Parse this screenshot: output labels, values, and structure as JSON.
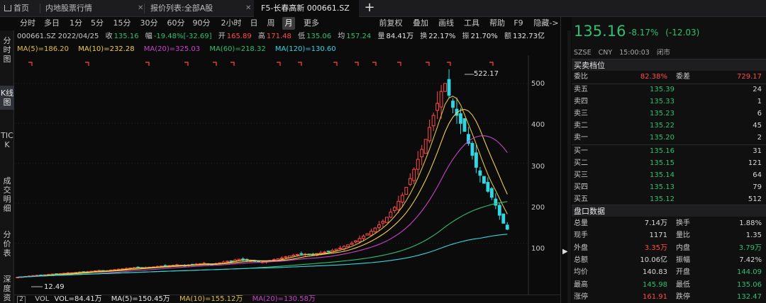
{
  "tabs": [
    {
      "label": "首页",
      "icon": "home-icon"
    },
    {
      "label": "内地股票行情"
    },
    {
      "label": "报价列表:全部A股"
    },
    {
      "label": "F5-长春高新 000661.SZ",
      "active": true
    }
  ],
  "tab_close": "✕",
  "add_tab": "+",
  "periods": [
    "分时",
    "多日",
    "1分",
    "5分",
    "15分",
    "30分",
    "60分",
    "90分",
    "2小时",
    "日",
    "周",
    "月",
    "更多"
  ],
  "active_period": "月",
  "toolbar_right": [
    "前复权",
    "叠加",
    "画线",
    "工具",
    "帮助",
    "F9",
    "隐藏->"
  ],
  "left_nav": [
    {
      "label": "分时图"
    },
    {
      "label": "K线图",
      "active": true
    },
    {
      "label": "TICK"
    },
    {
      "label": "成交明细"
    },
    {
      "label": "分价表"
    },
    {
      "label": "深度资"
    }
  ],
  "info": {
    "code_date": "000661.SZ 2022/04/25",
    "close_label": "收",
    "close": "135.16",
    "amp_label": "幅",
    "amp": "-19.48%[-32.69]",
    "open_label": "开",
    "open": "165.89",
    "high_label": "高",
    "high": "171.48",
    "low_label": "低",
    "low": "135.06",
    "avg_label": "均",
    "avg": "157.24",
    "vol_label": "量",
    "vol": "84.41万",
    "turn_label": "换",
    "turn": "22.17%",
    "swing_label": "振",
    "swing": "21.70%",
    "amt_label": "额",
    "amt": "132.73亿"
  },
  "ma": [
    {
      "label": "MA(5)=186.20",
      "color": "#e0c040"
    },
    {
      "label": "MA(10)=232.28",
      "color": "#f0d050"
    },
    {
      "label": "MA(20)=325.03",
      "color": "#c844c8"
    },
    {
      "label": "MA(60)=218.32",
      "color": "#2fbf71"
    },
    {
      "label": "MA(120)=130.60",
      "color": "#33d6e0"
    }
  ],
  "y_ticks": [
    "500",
    "400",
    "300",
    "200",
    "100"
  ],
  "peak_label": "522.17",
  "low_label": "12.49",
  "volume_bar": {
    "num": "2",
    "vol": "VOL",
    "vol_val": "VOL=84.41万",
    "ma5": "MA(5)=150.45万",
    "ma10": "MA(10)=155.12万",
    "ma20": "MA(20)=130.58万"
  },
  "quote": {
    "price": "135.16",
    "change_pct": "-8.17%",
    "change": "(-12.03)",
    "exchange": "SZSE",
    "currency": "CNY",
    "time": "15:00:03",
    "status": "闭市"
  },
  "orderbook": {
    "title": "买卖档位",
    "ratio_label": "委比",
    "ratio": "82.38%",
    "diff_label": "委差",
    "diff": "729.17",
    "asks": [
      {
        "label": "卖五",
        "price": "135.39",
        "vol": "24"
      },
      {
        "label": "卖四",
        "price": "135.33",
        "vol": "1"
      },
      {
        "label": "卖三",
        "price": "135.23",
        "vol": "6"
      },
      {
        "label": "卖二",
        "price": "135.22",
        "vol": "45"
      },
      {
        "label": "卖一",
        "price": "135.20",
        "vol": "2"
      }
    ],
    "bids": [
      {
        "label": "买一",
        "price": "135.16",
        "vol": "31"
      },
      {
        "label": "买二",
        "price": "135.15",
        "vol": "121"
      },
      {
        "label": "买三",
        "price": "135.14",
        "vol": "64"
      },
      {
        "label": "买四",
        "price": "135.13",
        "vol": "79"
      },
      {
        "label": "买五",
        "price": "135.12",
        "vol": "512"
      }
    ]
  },
  "market": {
    "title": "盘口数据",
    "rows": [
      {
        "l1": "总量",
        "v1": "7.14万",
        "c1": "#d8d8d8",
        "l2": "换手",
        "v2": "1.88%",
        "c2": "#d8d8d8"
      },
      {
        "l1": "现手",
        "v1": "1171",
        "c1": "#d8d8d8",
        "l2": "量比",
        "v2": "1.35",
        "c2": "#d8d8d8"
      },
      {
        "l1": "外盘",
        "v1": "3.35万",
        "c1": "#ff4a4a",
        "l2": "内盘",
        "v2": "3.79万",
        "c2": "#2fbf71"
      },
      {
        "l1": "总额",
        "v1": "10.06亿",
        "c1": "#d8d8d8",
        "l2": "振幅",
        "v2": "7.42%",
        "c2": "#d8d8d8"
      },
      {
        "l1": "均价",
        "v1": "140.83",
        "c1": "#d8d8d8",
        "l2": "开盘",
        "v2": "144.09",
        "c2": "#2fbf71"
      },
      {
        "l1": "最高",
        "v1": "145.98",
        "c1": "#2fbf71",
        "l2": "最低",
        "v2": "135.06",
        "c2": "#2fbf71"
      },
      {
        "l1": "涨停",
        "v1": "161.91",
        "c1": "#ff4a4a",
        "l2": "跌停",
        "v2": "132.47",
        "c2": "#2fbf71"
      }
    ]
  },
  "colors": {
    "up": "#ff4a4a",
    "down": "#2fbf71",
    "accent": "#2fbf71"
  },
  "chart_data": {
    "type": "candlestick",
    "y_ticks": [
      100,
      200,
      300,
      400,
      500
    ],
    "ylim": [
      0,
      560
    ],
    "peak": 522.17,
    "trough": 12.49,
    "closes": [
      15,
      16,
      17,
      18,
      19,
      20,
      20,
      21,
      22,
      23,
      23,
      24,
      25,
      26,
      26,
      27,
      28,
      28,
      29,
      30,
      31,
      32,
      30,
      31,
      33,
      34,
      35,
      36,
      37,
      38,
      39,
      40,
      38,
      39,
      40,
      41,
      42,
      43,
      44,
      44,
      45,
      46,
      45,
      44,
      46,
      47,
      48,
      49,
      50,
      48,
      47,
      49,
      51,
      53,
      55,
      56,
      58,
      60,
      58,
      57,
      56,
      55,
      54,
      53,
      55,
      57,
      59,
      61,
      63,
      66,
      68,
      70,
      72,
      74,
      73,
      71,
      72,
      74,
      76,
      78,
      80,
      82,
      85,
      88,
      92,
      96,
      100,
      106,
      112,
      118,
      124,
      130,
      138,
      146,
      155,
      165,
      178,
      190,
      205,
      220,
      240,
      262,
      285,
      310,
      335,
      360,
      390,
      420,
      450,
      480,
      500,
      470,
      440,
      420,
      400,
      380,
      350,
      320,
      290,
      270,
      250,
      230,
      215,
      195,
      170,
      150,
      135
    ],
    "ma": {
      "MA(5)": 186.2,
      "MA(10)": 232.28,
      "MA(20)": 325.03,
      "MA(60)": 218.32,
      "MA(120)": 130.6
    }
  }
}
